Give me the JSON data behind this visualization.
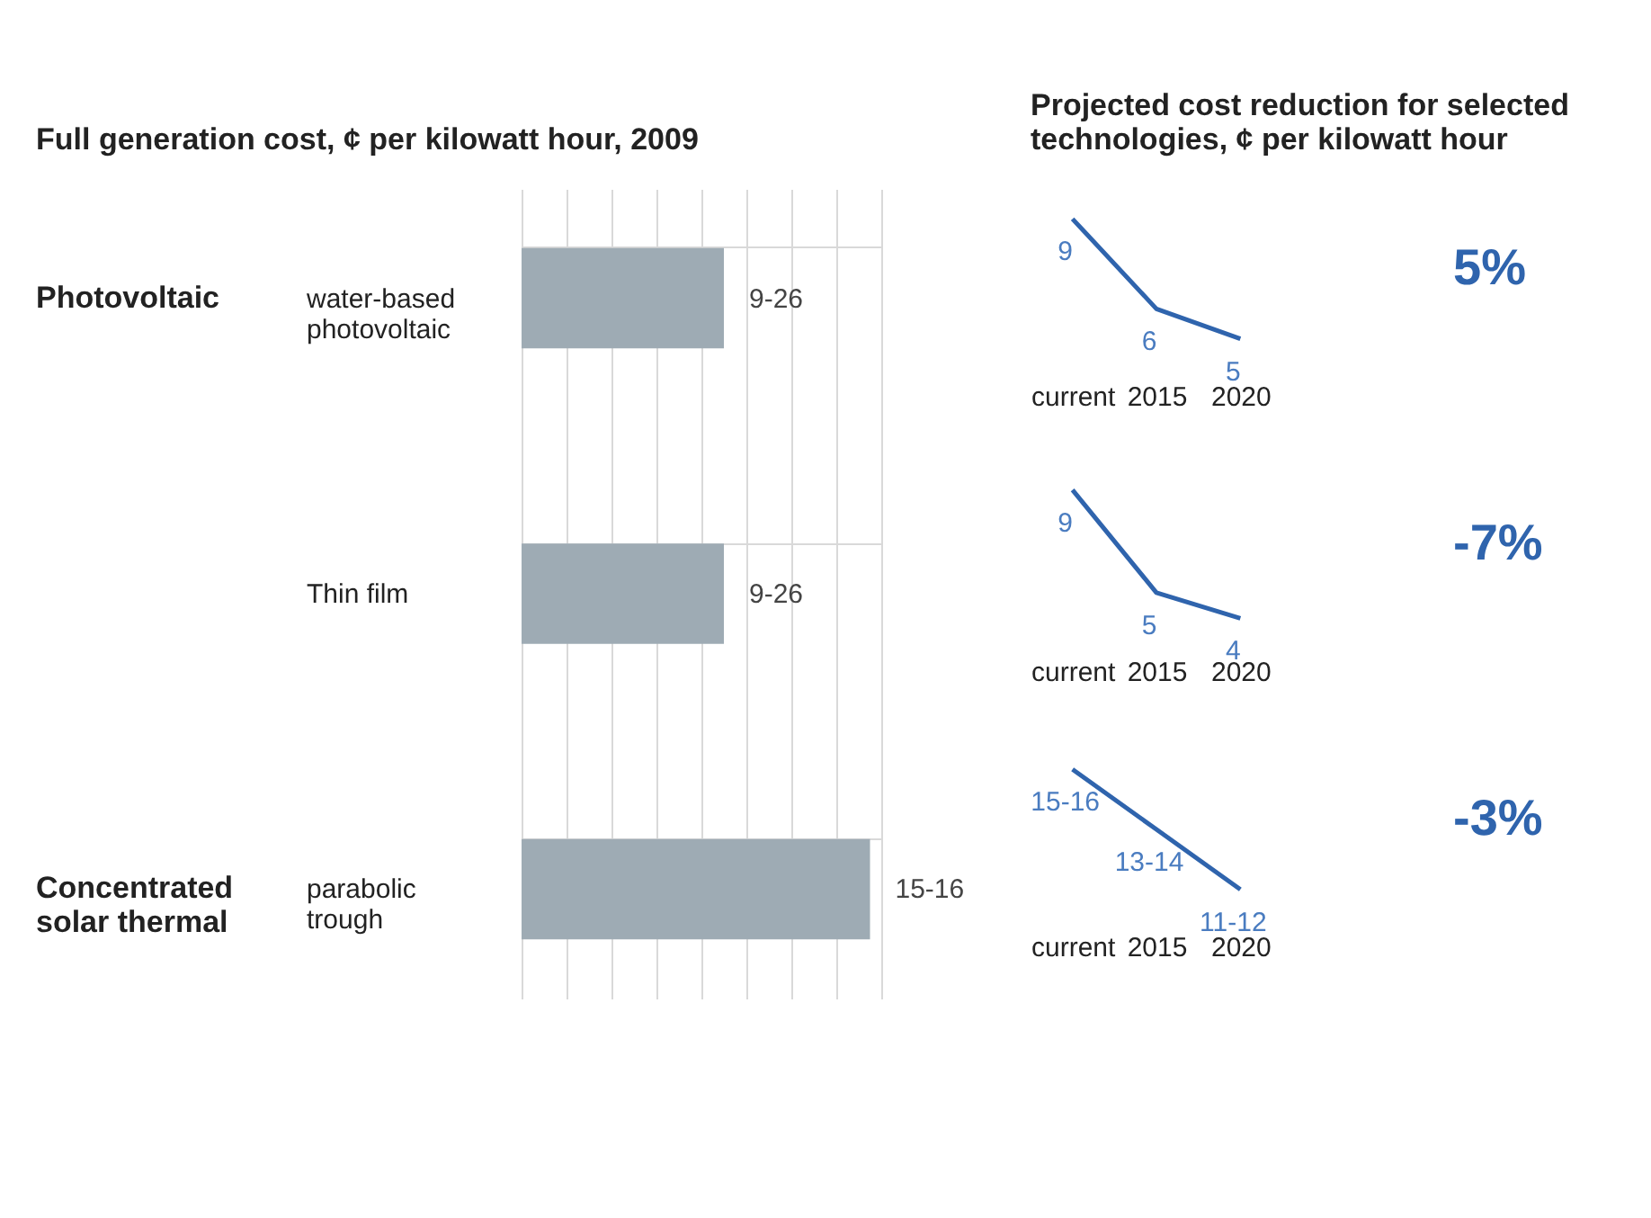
{
  "chart_data": [
    {
      "type": "bar",
      "orientation": "horizontal",
      "title": "Full generation cost, ¢ per kilowatt hour, 2009",
      "categories": [
        "water-based photovoltaic",
        "Thin film",
        "parabolic trough"
      ],
      "values": [
        9,
        9,
        15.5
      ],
      "value_labels": [
        "9-26",
        "9-26",
        "15-16"
      ],
      "color": "#9eabb4",
      "grid": true,
      "annotations": [
        "Photovoltaic",
        "Concentrated solar thermal"
      ]
    },
    {
      "type": "line",
      "title": "Projected cost reduction for selected technologies, ¢ per kilowatt hour",
      "categories": [
        "current",
        "2015",
        "2020"
      ],
      "values": [
        9,
        6,
        5
      ],
      "color": "#2f64ad",
      "data_labels": true,
      "tick_labels": "x",
      "annotations": [
        "5%"
      ]
    },
    {
      "type": "line",
      "categories": [
        "current",
        "2015",
        "2020"
      ],
      "values": [
        9,
        5,
        4
      ],
      "color": "#2f64ad",
      "data_labels": true,
      "tick_labels": "x",
      "annotations": [
        "-7%"
      ]
    },
    {
      "type": "line",
      "categories": [
        "current",
        "2015",
        "2020"
      ],
      "values": [
        15.5,
        13.5,
        11.5
      ],
      "value_labels": [
        "15-16",
        "13-14",
        "11-12"
      ],
      "color": "#2f64ad",
      "tick_labels": "x",
      "annotations": [
        "-3%"
      ]
    }
  ]
}
